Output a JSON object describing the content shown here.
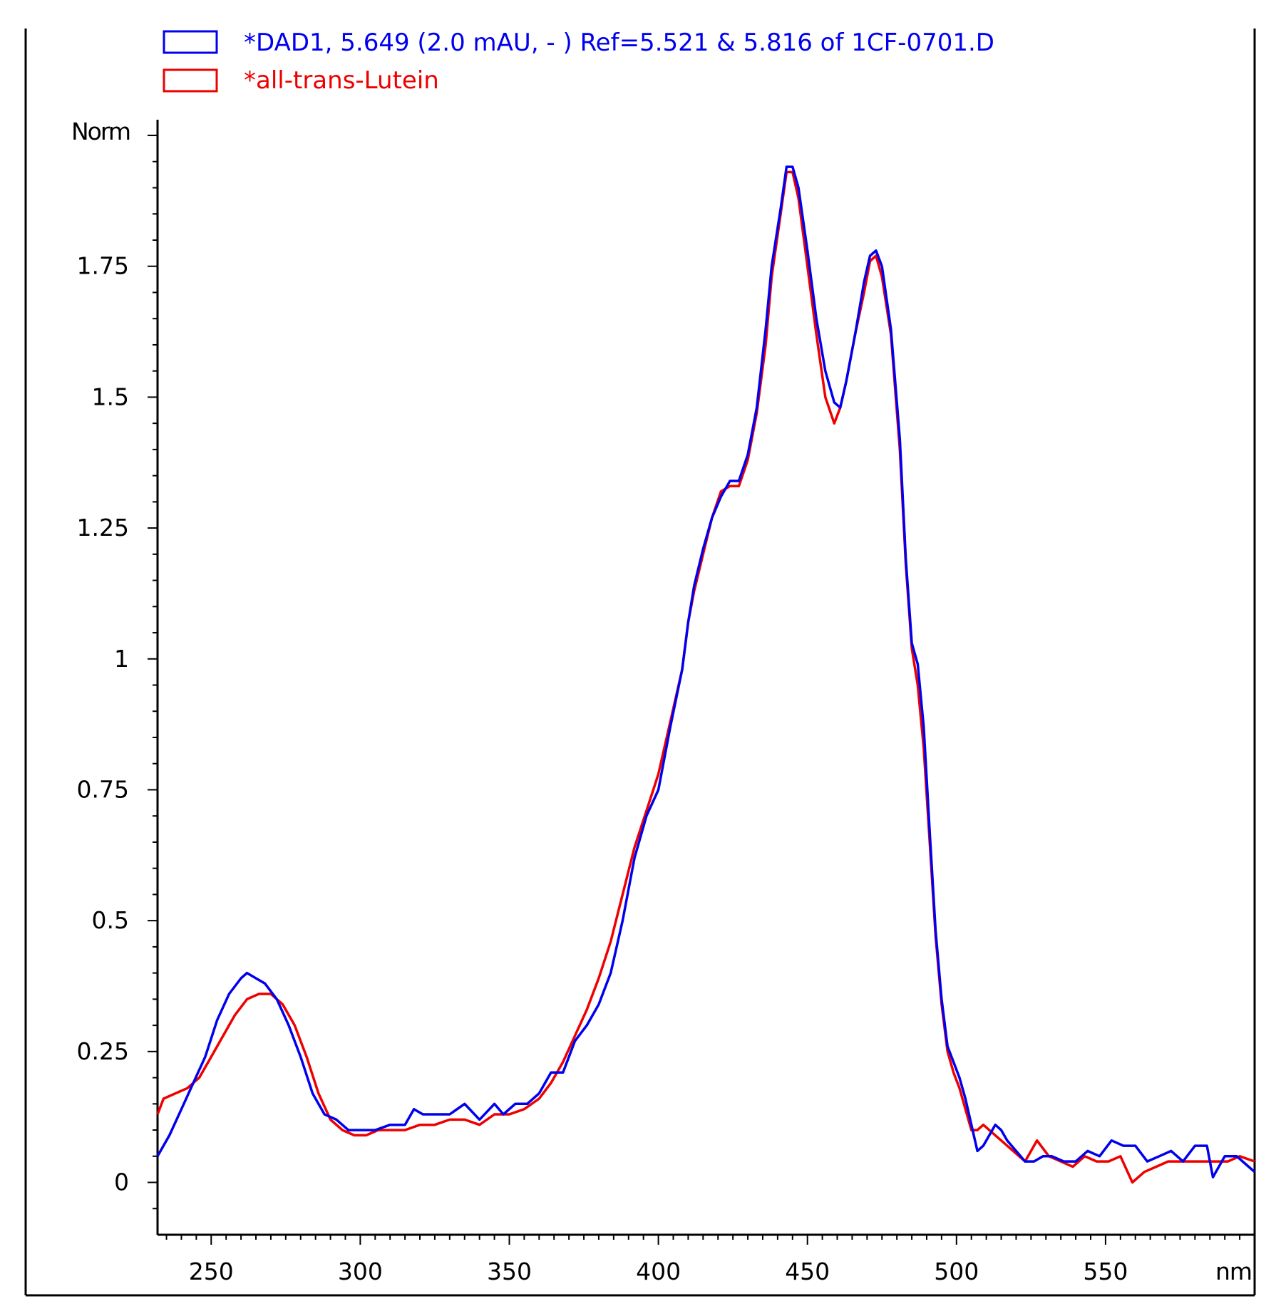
{
  "chart_data": {
    "type": "line",
    "ylabel": "Norm",
    "xlabel": "nm",
    "xlim": [
      232,
      600
    ],
    "ylim": [
      -0.1,
      2.03
    ],
    "x_ticks": [
      250,
      300,
      350,
      400,
      450,
      500,
      550
    ],
    "x_tick_labels": [
      "250",
      "300",
      "350",
      "400",
      "450",
      "500",
      "550"
    ],
    "y_ticks": [
      0,
      0.25,
      0.5,
      0.75,
      1,
      1.25,
      1.5,
      1.75
    ],
    "y_tick_labels": [
      "0",
      "0.25",
      "0.5",
      "0.75",
      "1",
      "1.25",
      "1.5",
      "1.75"
    ],
    "grid": false,
    "legend_position": "top-left",
    "series": [
      {
        "name": "*DAD1, 5.649 (2.0 mAU, - ) Ref=5.521 & 5.816 of 1CF-0701.D",
        "color": "#0000ee",
        "points": [
          [
            232,
            0.05
          ],
          [
            236,
            0.09
          ],
          [
            240,
            0.14
          ],
          [
            244,
            0.19
          ],
          [
            248,
            0.24
          ],
          [
            252,
            0.31
          ],
          [
            256,
            0.36
          ],
          [
            260,
            0.39
          ],
          [
            262,
            0.4
          ],
          [
            265,
            0.39
          ],
          [
            268,
            0.38
          ],
          [
            272,
            0.35
          ],
          [
            276,
            0.3
          ],
          [
            280,
            0.24
          ],
          [
            284,
            0.17
          ],
          [
            288,
            0.13
          ],
          [
            292,
            0.12
          ],
          [
            296,
            0.1
          ],
          [
            300,
            0.1
          ],
          [
            305,
            0.1
          ],
          [
            310,
            0.11
          ],
          [
            315,
            0.11
          ],
          [
            318,
            0.14
          ],
          [
            321,
            0.13
          ],
          [
            325,
            0.13
          ],
          [
            330,
            0.13
          ],
          [
            335,
            0.15
          ],
          [
            340,
            0.12
          ],
          [
            345,
            0.15
          ],
          [
            348,
            0.13
          ],
          [
            352,
            0.15
          ],
          [
            356,
            0.15
          ],
          [
            360,
            0.17
          ],
          [
            364,
            0.21
          ],
          [
            368,
            0.21
          ],
          [
            372,
            0.27
          ],
          [
            376,
            0.3
          ],
          [
            380,
            0.34
          ],
          [
            384,
            0.4
          ],
          [
            388,
            0.5
          ],
          [
            392,
            0.62
          ],
          [
            396,
            0.7
          ],
          [
            400,
            0.75
          ],
          [
            404,
            0.87
          ],
          [
            408,
            0.98
          ],
          [
            410,
            1.07
          ],
          [
            412,
            1.14
          ],
          [
            415,
            1.21
          ],
          [
            418,
            1.27
          ],
          [
            421,
            1.31
          ],
          [
            424,
            1.34
          ],
          [
            427,
            1.34
          ],
          [
            430,
            1.39
          ],
          [
            433,
            1.48
          ],
          [
            436,
            1.63
          ],
          [
            438,
            1.75
          ],
          [
            441,
            1.86
          ],
          [
            443,
            1.94
          ],
          [
            445,
            1.94
          ],
          [
            447,
            1.9
          ],
          [
            450,
            1.78
          ],
          [
            453,
            1.65
          ],
          [
            456,
            1.55
          ],
          [
            459,
            1.49
          ],
          [
            461,
            1.48
          ],
          [
            463,
            1.53
          ],
          [
            466,
            1.62
          ],
          [
            469,
            1.72
          ],
          [
            471,
            1.77
          ],
          [
            473,
            1.78
          ],
          [
            475,
            1.75
          ],
          [
            478,
            1.63
          ],
          [
            481,
            1.42
          ],
          [
            483,
            1.19
          ],
          [
            485,
            1.03
          ],
          [
            487,
            0.99
          ],
          [
            489,
            0.87
          ],
          [
            491,
            0.67
          ],
          [
            493,
            0.48
          ],
          [
            495,
            0.35
          ],
          [
            497,
            0.26
          ],
          [
            499,
            0.23
          ],
          [
            501,
            0.2
          ],
          [
            503,
            0.16
          ],
          [
            505,
            0.11
          ],
          [
            507,
            0.06
          ],
          [
            509,
            0.07
          ],
          [
            511,
            0.09
          ],
          [
            513,
            0.11
          ],
          [
            515,
            0.1
          ],
          [
            517,
            0.08
          ],
          [
            520,
            0.06
          ],
          [
            523,
            0.04
          ],
          [
            526,
            0.04
          ],
          [
            529,
            0.05
          ],
          [
            532,
            0.05
          ],
          [
            536,
            0.04
          ],
          [
            540,
            0.04
          ],
          [
            544,
            0.06
          ],
          [
            548,
            0.05
          ],
          [
            552,
            0.08
          ],
          [
            556,
            0.07
          ],
          [
            560,
            0.07
          ],
          [
            564,
            0.04
          ],
          [
            568,
            0.05
          ],
          [
            572,
            0.06
          ],
          [
            576,
            0.04
          ],
          [
            580,
            0.07
          ],
          [
            584,
            0.07
          ],
          [
            586,
            0.01
          ],
          [
            590,
            0.05
          ],
          [
            594,
            0.05
          ],
          [
            598,
            0.03
          ],
          [
            600,
            0.02
          ]
        ]
      },
      {
        "name": "*all-trans-Lutein",
        "color": "#ee0000",
        "points": [
          [
            232,
            0.13
          ],
          [
            234,
            0.16
          ],
          [
            238,
            0.17
          ],
          [
            242,
            0.18
          ],
          [
            246,
            0.2
          ],
          [
            250,
            0.24
          ],
          [
            254,
            0.28
          ],
          [
            258,
            0.32
          ],
          [
            262,
            0.35
          ],
          [
            266,
            0.36
          ],
          [
            270,
            0.36
          ],
          [
            274,
            0.34
          ],
          [
            278,
            0.3
          ],
          [
            282,
            0.24
          ],
          [
            286,
            0.17
          ],
          [
            290,
            0.12
          ],
          [
            294,
            0.1
          ],
          [
            298,
            0.09
          ],
          [
            302,
            0.09
          ],
          [
            306,
            0.1
          ],
          [
            310,
            0.1
          ],
          [
            315,
            0.1
          ],
          [
            320,
            0.11
          ],
          [
            325,
            0.11
          ],
          [
            330,
            0.12
          ],
          [
            335,
            0.12
          ],
          [
            340,
            0.11
          ],
          [
            345,
            0.13
          ],
          [
            350,
            0.13
          ],
          [
            355,
            0.14
          ],
          [
            360,
            0.16
          ],
          [
            364,
            0.19
          ],
          [
            368,
            0.23
          ],
          [
            372,
            0.28
          ],
          [
            376,
            0.33
          ],
          [
            380,
            0.39
          ],
          [
            384,
            0.46
          ],
          [
            388,
            0.55
          ],
          [
            392,
            0.64
          ],
          [
            396,
            0.71
          ],
          [
            400,
            0.78
          ],
          [
            404,
            0.88
          ],
          [
            408,
            0.98
          ],
          [
            410,
            1.07
          ],
          [
            412,
            1.13
          ],
          [
            415,
            1.2
          ],
          [
            418,
            1.27
          ],
          [
            421,
            1.32
          ],
          [
            424,
            1.33
          ],
          [
            427,
            1.33
          ],
          [
            430,
            1.38
          ],
          [
            433,
            1.47
          ],
          [
            436,
            1.6
          ],
          [
            438,
            1.73
          ],
          [
            441,
            1.85
          ],
          [
            443,
            1.93
          ],
          [
            445,
            1.93
          ],
          [
            447,
            1.88
          ],
          [
            450,
            1.75
          ],
          [
            453,
            1.62
          ],
          [
            456,
            1.5
          ],
          [
            459,
            1.45
          ],
          [
            461,
            1.48
          ],
          [
            463,
            1.53
          ],
          [
            466,
            1.62
          ],
          [
            469,
            1.7
          ],
          [
            471,
            1.76
          ],
          [
            473,
            1.77
          ],
          [
            475,
            1.73
          ],
          [
            478,
            1.62
          ],
          [
            481,
            1.4
          ],
          [
            483,
            1.18
          ],
          [
            485,
            1.02
          ],
          [
            487,
            0.95
          ],
          [
            489,
            0.83
          ],
          [
            491,
            0.65
          ],
          [
            493,
            0.47
          ],
          [
            495,
            0.34
          ],
          [
            497,
            0.25
          ],
          [
            499,
            0.21
          ],
          [
            501,
            0.18
          ],
          [
            503,
            0.14
          ],
          [
            505,
            0.1
          ],
          [
            507,
            0.1
          ],
          [
            509,
            0.11
          ],
          [
            511,
            0.1
          ],
          [
            515,
            0.08
          ],
          [
            519,
            0.06
          ],
          [
            523,
            0.04
          ],
          [
            527,
            0.08
          ],
          [
            531,
            0.05
          ],
          [
            535,
            0.04
          ],
          [
            539,
            0.03
          ],
          [
            543,
            0.05
          ],
          [
            547,
            0.04
          ],
          [
            551,
            0.04
          ],
          [
            555,
            0.05
          ],
          [
            559,
            0.0
          ],
          [
            563,
            0.02
          ],
          [
            567,
            0.03
          ],
          [
            571,
            0.04
          ],
          [
            575,
            0.04
          ],
          [
            579,
            0.04
          ],
          [
            583,
            0.04
          ],
          [
            587,
            0.04
          ],
          [
            591,
            0.04
          ],
          [
            595,
            0.05
          ],
          [
            600,
            0.04
          ]
        ]
      }
    ]
  }
}
